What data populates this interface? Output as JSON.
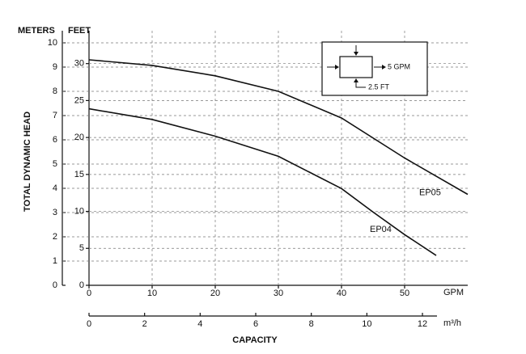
{
  "chart_data": {
    "type": "line",
    "y_label_left": "METERS",
    "y_label_right": "FEET",
    "y_title": "TOTAL DYNAMIC HEAD",
    "x_unit": "GPM",
    "x2_unit": "m³/h",
    "x_title": "CAPACITY",
    "inset_labels": [
      "5 GPM",
      "2.5 FT"
    ],
    "xlim": [
      0,
      60
    ],
    "xticks": [
      0,
      10,
      20,
      30,
      40,
      50
    ],
    "x2lim": [
      0,
      13.63
    ],
    "x2ticks": [
      0,
      2,
      4,
      6,
      8,
      10,
      12
    ],
    "ylim": [
      0,
      10.5
    ],
    "yticks": [
      0,
      1,
      2,
      3,
      4,
      5,
      6,
      7,
      8,
      9,
      10
    ],
    "y2lim": [
      0,
      34.45
    ],
    "y2ticks": [
      0,
      5,
      10,
      15,
      20,
      25,
      30
    ],
    "grid": true,
    "series": [
      {
        "name": "EP05",
        "color": "#111111",
        "x": [
          0,
          10,
          20,
          30,
          40,
          50,
          60
        ],
        "values": [
          9.3,
          9.07,
          8.64,
          8.0,
          6.9,
          5.25,
          3.75
        ]
      },
      {
        "name": "EP04",
        "color": "#111111",
        "x": [
          0,
          10,
          20,
          30,
          40,
          45,
          50,
          55
        ],
        "values": [
          7.28,
          6.84,
          6.15,
          5.32,
          3.99,
          3.02,
          2.09,
          1.23
        ]
      }
    ]
  }
}
